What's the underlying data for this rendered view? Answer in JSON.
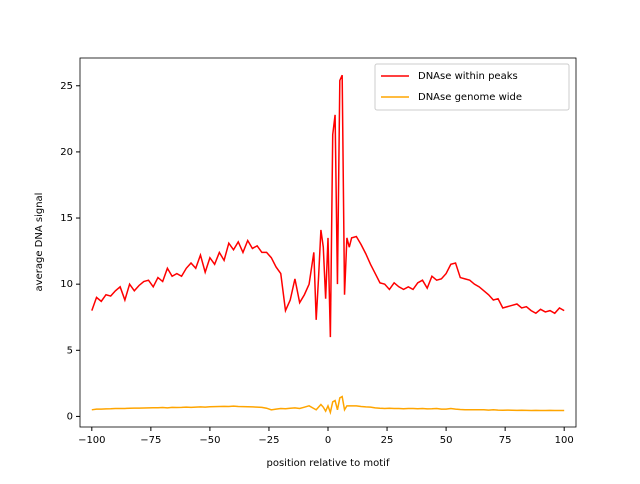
{
  "chart_data": {
    "type": "line",
    "xlabel": "position relative to motif",
    "ylabel": "average DNA signal",
    "x": [
      -100,
      -98,
      -96,
      -94,
      -92,
      -90,
      -88,
      -86,
      -84,
      -82,
      -80,
      -78,
      -76,
      -74,
      -72,
      -70,
      -68,
      -66,
      -64,
      -62,
      -60,
      -58,
      -56,
      -54,
      -52,
      -50,
      -48,
      -46,
      -44,
      -42,
      -40,
      -38,
      -36,
      -34,
      -32,
      -30,
      -28,
      -26,
      -24,
      -22,
      -20,
      -18,
      -16,
      -14,
      -12,
      -10,
      -8,
      -6,
      -5,
      -4,
      -3,
      -2,
      -1,
      0,
      1,
      2,
      3,
      4,
      5,
      6,
      7,
      8,
      9,
      10,
      12,
      14,
      16,
      18,
      20,
      22,
      24,
      26,
      28,
      30,
      32,
      34,
      36,
      38,
      40,
      42,
      44,
      46,
      48,
      50,
      52,
      54,
      56,
      58,
      60,
      62,
      64,
      66,
      68,
      70,
      72,
      74,
      76,
      78,
      80,
      82,
      84,
      86,
      88,
      90,
      92,
      94,
      96,
      98,
      100
    ],
    "series": [
      {
        "name": "DNAse within peaks",
        "color": "#ff0000",
        "values": [
          8.0,
          9.0,
          8.7,
          9.2,
          9.1,
          9.5,
          9.8,
          8.8,
          10.0,
          9.5,
          9.9,
          10.2,
          10.3,
          9.8,
          10.5,
          10.2,
          11.2,
          10.6,
          10.8,
          10.6,
          11.2,
          11.6,
          11.2,
          12.2,
          10.9,
          12.0,
          11.5,
          12.4,
          11.8,
          13.1,
          12.6,
          13.2,
          12.4,
          13.3,
          12.7,
          12.9,
          12.4,
          12.4,
          12.0,
          11.3,
          10.8,
          8.0,
          8.8,
          10.4,
          8.6,
          9.2,
          10.0,
          12.4,
          7.3,
          10.5,
          14.1,
          12.8,
          8.9,
          13.5,
          6.0,
          21.3,
          22.8,
          10.0,
          25.4,
          25.8,
          9.2,
          13.5,
          12.8,
          13.5,
          13.6,
          13.0,
          12.3,
          11.5,
          10.8,
          10.1,
          10.0,
          9.6,
          10.1,
          9.8,
          9.6,
          9.8,
          9.6,
          10.1,
          10.3,
          9.7,
          10.6,
          10.3,
          10.4,
          10.8,
          11.5,
          11.6,
          10.5,
          10.4,
          10.3,
          10.0,
          9.8,
          9.5,
          9.2,
          8.8,
          8.9,
          8.2,
          8.3,
          8.4,
          8.5,
          8.2,
          8.3,
          8.0,
          7.8,
          8.1,
          7.9,
          8.0,
          7.8,
          8.2,
          8.0
        ]
      },
      {
        "name": "DNAse genome wide",
        "color": "#ffa500",
        "values": [
          0.5,
          0.55,
          0.55,
          0.57,
          0.58,
          0.6,
          0.6,
          0.6,
          0.62,
          0.63,
          0.63,
          0.64,
          0.65,
          0.66,
          0.66,
          0.67,
          0.65,
          0.68,
          0.67,
          0.68,
          0.7,
          0.68,
          0.7,
          0.72,
          0.7,
          0.73,
          0.74,
          0.75,
          0.76,
          0.75,
          0.78,
          0.75,
          0.74,
          0.73,
          0.72,
          0.7,
          0.68,
          0.62,
          0.5,
          0.55,
          0.6,
          0.58,
          0.62,
          0.65,
          0.6,
          0.7,
          0.8,
          0.6,
          0.5,
          0.7,
          0.9,
          0.7,
          0.4,
          0.8,
          0.3,
          1.1,
          1.2,
          0.5,
          1.4,
          1.5,
          0.5,
          0.8,
          0.8,
          0.8,
          0.8,
          0.75,
          0.72,
          0.7,
          0.65,
          0.62,
          0.6,
          0.62,
          0.6,
          0.6,
          0.58,
          0.6,
          0.6,
          0.58,
          0.6,
          0.57,
          0.58,
          0.6,
          0.55,
          0.55,
          0.6,
          0.55,
          0.52,
          0.5,
          0.5,
          0.5,
          0.5,
          0.5,
          0.48,
          0.5,
          0.48,
          0.47,
          0.48,
          0.47,
          0.46,
          0.47,
          0.46,
          0.45,
          0.46,
          0.45,
          0.45,
          0.46,
          0.45,
          0.45,
          0.45
        ]
      }
    ],
    "xlim": [
      -105,
      105
    ],
    "ylim": [
      -0.8,
      27.1
    ],
    "xticks": [
      {
        "value": -100,
        "label": "−100"
      },
      {
        "value": -75,
        "label": "−75"
      },
      {
        "value": -50,
        "label": "−50"
      },
      {
        "value": -25,
        "label": "−25"
      },
      0,
      25,
      50,
      75,
      100
    ],
    "yticks": [
      0,
      5,
      10,
      15,
      20,
      25
    ],
    "legend": "upper right"
  }
}
